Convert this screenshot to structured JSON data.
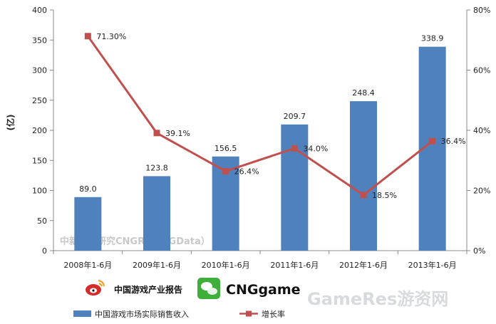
{
  "chart_data": {
    "type": "bar",
    "categories": [
      "2008年1-6月",
      "2009年1-6月",
      "2010年1-6月",
      "2011年1-6月",
      "2012年1-6月",
      "2013年1-6月"
    ],
    "series": [
      {
        "name": "中国游戏市场实际销售收入",
        "type": "bar",
        "axis": "left",
        "values": [
          89.0,
          123.8,
          156.5,
          209.7,
          248.4,
          338.9
        ],
        "labels": [
          "89.0",
          "123.8",
          "156.5",
          "209.7",
          "248.4",
          "338.9"
        ],
        "color": "#4f81bd"
      },
      {
        "name": "增长率",
        "type": "line",
        "axis": "right",
        "values": [
          71.3,
          39.1,
          26.4,
          34.0,
          18.5,
          36.4
        ],
        "labels": [
          "71.30%",
          "39.1%",
          "26.4%",
          "34.0%",
          "18.5%",
          "36.4%"
        ],
        "color": "#c0504d"
      }
    ],
    "ylabel": "(亿)",
    "ylim": [
      0,
      400
    ],
    "y_ticks": [
      "0",
      "50",
      "100",
      "150",
      "200",
      "250",
      "300",
      "350",
      "400"
    ],
    "y2lim": [
      0,
      80
    ],
    "y2_ticks": [
      "0%",
      "20%",
      "40%",
      "60%",
      "80%"
    ],
    "grid": false,
    "legend_position": "bottom"
  },
  "watermark": "中新游戏研究CNGR（CNGData）",
  "brands": {
    "left": "中国游戏产业报告",
    "right": "CNGgame"
  },
  "site_mark": "GameRes游资网"
}
